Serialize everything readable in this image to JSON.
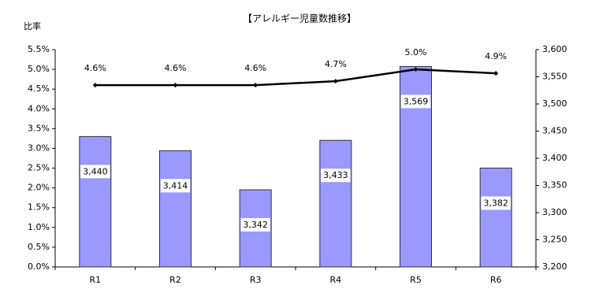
{
  "chart_data": {
    "type": "bar",
    "title": "【アレルギー児童数推移】",
    "y_label": "比率",
    "categories": [
      "R1",
      "R2",
      "R3",
      "R4",
      "R5",
      "R6"
    ],
    "series": [
      {
        "type": "bar",
        "axis": "y2",
        "color": "#9999ff",
        "values": [
          3440,
          3414,
          3342,
          3433,
          3569,
          3382
        ],
        "value_labels": [
          "3,440",
          "3,414",
          "3,342",
          "3,433",
          "3,569",
          "3,382"
        ]
      },
      {
        "type": "line",
        "axis": "y",
        "color": "#000000",
        "values": [
          4.6,
          4.6,
          4.6,
          4.7,
          5.0,
          4.9
        ],
        "value_labels": [
          "4.6%",
          "4.6%",
          "4.6%",
          "4.7%",
          "5.0%",
          "4.9%"
        ]
      }
    ],
    "ylim": [
      0,
      5.5
    ],
    "yticks": [
      {
        "value": 0,
        "label": "0.0%"
      },
      {
        "value": 0.5,
        "label": "0.5%"
      },
      {
        "value": 1,
        "label": "1.0%"
      },
      {
        "value": 1.5,
        "label": "1.5%"
      },
      {
        "value": 2,
        "label": "2.0%"
      },
      {
        "value": 2.5,
        "label": "2.5%"
      },
      {
        "value": 3,
        "label": "3.0%"
      },
      {
        "value": 3.5,
        "label": "3.5%"
      },
      {
        "value": 4,
        "label": "4.0%"
      },
      {
        "value": 4.5,
        "label": "4.5%"
      },
      {
        "value": 5,
        "label": "5.0%"
      },
      {
        "value": 5.5,
        "label": "5.5%"
      }
    ],
    "y2lim": [
      3200,
      3600
    ],
    "y2ticks": [
      {
        "value": 3200,
        "label": "3,200"
      },
      {
        "value": 3250,
        "label": "3,250"
      },
      {
        "value": 3300,
        "label": "3,300"
      },
      {
        "value": 3350,
        "label": "3,350"
      },
      {
        "value": 3400,
        "label": "3,400"
      },
      {
        "value": 3450,
        "label": "3,450"
      },
      {
        "value": 3500,
        "label": "3,500"
      },
      {
        "value": 3550,
        "label": "3,550"
      },
      {
        "value": 3600,
        "label": "3,600"
      }
    ],
    "grid": false
  }
}
